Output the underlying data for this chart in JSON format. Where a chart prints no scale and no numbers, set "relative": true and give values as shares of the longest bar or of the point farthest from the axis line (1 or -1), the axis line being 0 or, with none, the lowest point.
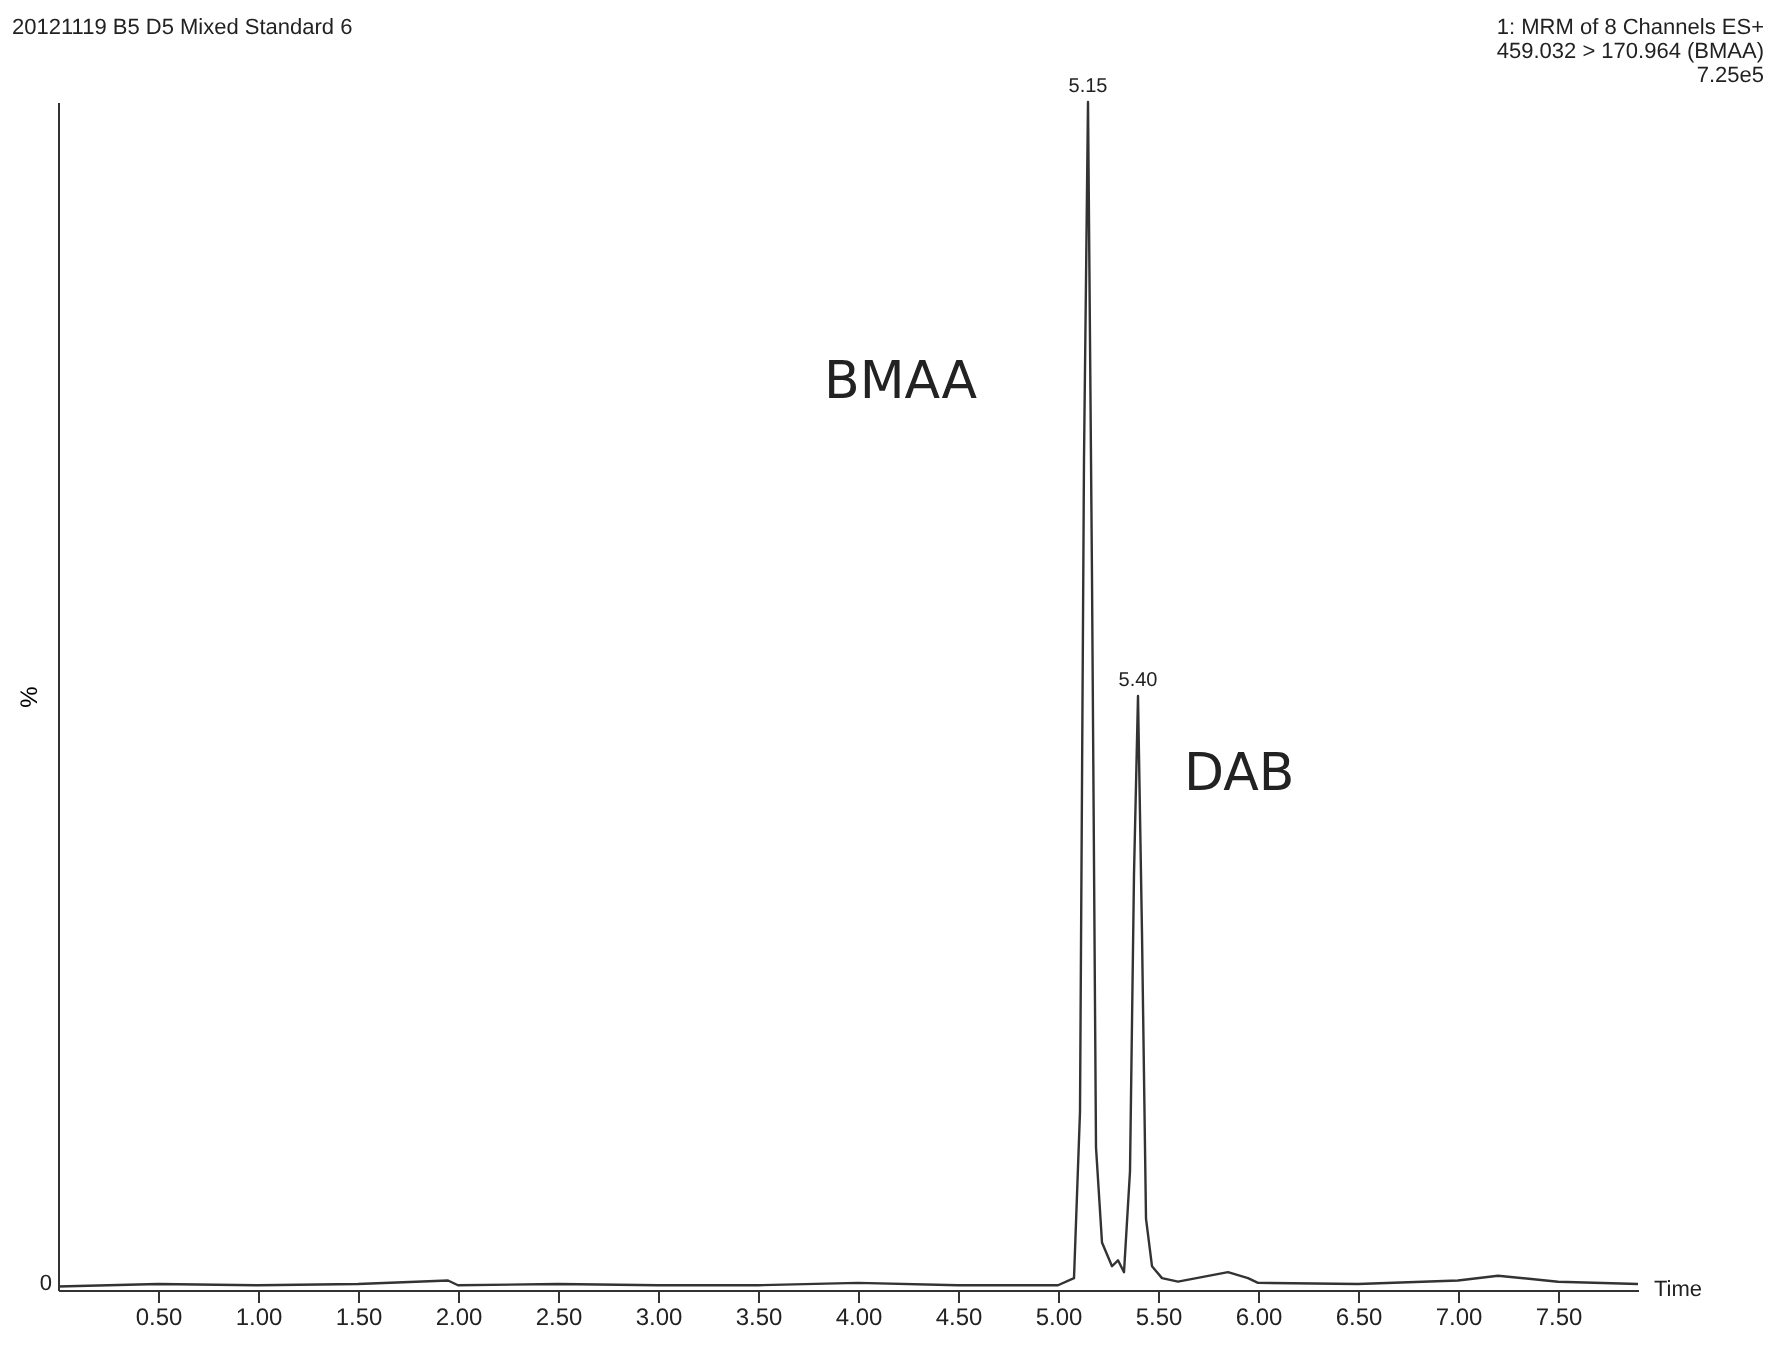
{
  "chart_data": {
    "type": "line",
    "title": "20121119 B5 D5 Mixed Standard 6",
    "xlabel": "Time",
    "ylabel": "%",
    "relative": true,
    "grid": false,
    "legend": false,
    "marker": "none",
    "line_style": "solid",
    "xlim": [
      0,
      7.9
    ],
    "xticks": [
      {
        "value": 0.5,
        "label": "0.50"
      },
      {
        "value": 1,
        "label": "1.00"
      },
      {
        "value": 1.5,
        "label": "1.50"
      },
      {
        "value": 2,
        "label": "2.00"
      },
      {
        "value": 2.5,
        "label": "2.50"
      },
      {
        "value": 3,
        "label": "3.00"
      },
      {
        "value": 3.5,
        "label": "3.50"
      },
      {
        "value": 4,
        "label": "4.00"
      },
      {
        "value": 4.5,
        "label": "4.50"
      },
      {
        "value": 5,
        "label": "5.00"
      },
      {
        "value": 5.5,
        "label": "5.50"
      },
      {
        "value": 6,
        "label": "6.00"
      },
      {
        "value": 6.5,
        "label": "6.50"
      },
      {
        "value": 7,
        "label": "7.00"
      },
      {
        "value": 7.5,
        "label": "7.50"
      }
    ],
    "x": [
      0,
      0.5,
      1,
      1.5,
      1.95,
      2,
      2.5,
      3,
      3.5,
      4,
      4.5,
      5,
      5.08,
      5.11,
      5.13,
      5.15,
      5.17,
      5.19,
      5.22,
      5.27,
      5.3,
      5.33,
      5.36,
      5.38,
      5.4,
      5.42,
      5.44,
      5.47,
      5.52,
      5.6,
      5.85,
      5.95,
      6,
      6.5,
      7,
      7.2,
      7.5,
      7.9
    ],
    "series": [
      {
        "color": "#333333",
        "values": [
          0.003,
          0.005,
          0.004,
          0.005,
          0.008,
          0.004,
          0.005,
          0.004,
          0.004,
          0.006,
          0.004,
          0.004,
          0.01,
          0.15,
          0.7,
          1,
          0.6,
          0.12,
          0.04,
          0.02,
          0.025,
          0.015,
          0.1,
          0.35,
          0.5,
          0.3,
          0.06,
          0.02,
          0.01,
          0.007,
          0.015,
          0.01,
          0.006,
          0.005,
          0.008,
          0.012,
          0.007,
          0.005
        ]
      }
    ],
    "annotations": [
      "1: MRM of 8 Channels ES+",
      "459.032 > 170.964 (BMAA)",
      "7.25e5",
      {
        "text": "5.15",
        "x": 5.15,
        "y": 1
      },
      {
        "text": "5.40",
        "x": 5.4,
        "y": 0.5
      },
      "BMAA",
      "DAB",
      "0"
    ]
  }
}
